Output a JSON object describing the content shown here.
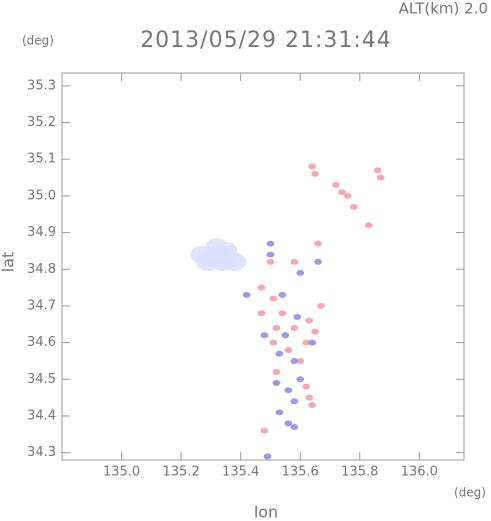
{
  "chart_data": {
    "type": "scatter",
    "title": "2013/05/29 21:31:44",
    "subtitle": "ALT(km) 2.0",
    "y_unit": "(deg)",
    "x_unit": "(deg)",
    "xlabel": "lon",
    "ylabel": "lat",
    "xlim": [
      134.8,
      136.15
    ],
    "ylim": [
      34.28,
      35.335
    ],
    "xticks": [
      {
        "value": 135,
        "label": "135.0"
      },
      135.2,
      135.4,
      135.6,
      135.8,
      {
        "value": 136,
        "label": "136.0"
      }
    ],
    "yticks": [
      35.3,
      35.2,
      35.1,
      {
        "value": 35,
        "label": "35.0"
      },
      34.9,
      34.8,
      34.7,
      34.6,
      34.5,
      34.4,
      34.3
    ],
    "series": [
      {
        "color": "#dde0fa",
        "x": [
          135.27,
          135.3,
          135.33,
          135.36,
          135.38,
          135.32,
          135.35,
          135.29,
          135.34
        ],
        "values": [
          34.84,
          34.83,
          34.84,
          34.83,
          34.82,
          34.86,
          34.85,
          34.82,
          34.82
        ]
      },
      {
        "color": "#f3a0a8",
        "x": [
          135.64,
          135.65,
          135.72,
          135.74,
          135.86,
          135.87,
          135.76,
          135.83,
          135.78,
          135.5,
          135.47,
          135.51,
          135.47,
          135.52,
          135.58,
          135.63,
          135.65,
          135.56,
          135.62,
          135.6,
          135.52,
          135.62,
          135.63,
          135.64,
          135.51,
          135.54,
          135.67,
          135.48,
          135.58,
          135.66
        ],
        "values": [
          35.08,
          35.06,
          35.03,
          35.01,
          35.07,
          35.05,
          35.0,
          34.92,
          34.97,
          34.82,
          34.75,
          34.72,
          34.68,
          34.64,
          34.64,
          34.66,
          34.63,
          34.58,
          34.6,
          34.55,
          34.52,
          34.48,
          34.45,
          34.43,
          34.6,
          34.68,
          34.7,
          34.36,
          34.82,
          34.87
        ]
      },
      {
        "color": "#9090ec",
        "x": [
          135.58,
          135.56,
          135.49,
          135.53,
          135.56,
          135.58,
          135.6,
          135.64,
          135.53,
          135.48,
          135.5,
          135.6,
          135.59,
          135.42,
          135.52,
          135.55,
          135.54,
          135.66,
          135.58,
          135.5
        ],
        "values": [
          34.37,
          34.38,
          34.29,
          34.41,
          34.47,
          34.55,
          34.5,
          34.6,
          34.57,
          34.62,
          34.87,
          34.79,
          34.67,
          34.73,
          34.49,
          34.62,
          34.73,
          34.82,
          34.44,
          34.84
        ]
      }
    ]
  }
}
